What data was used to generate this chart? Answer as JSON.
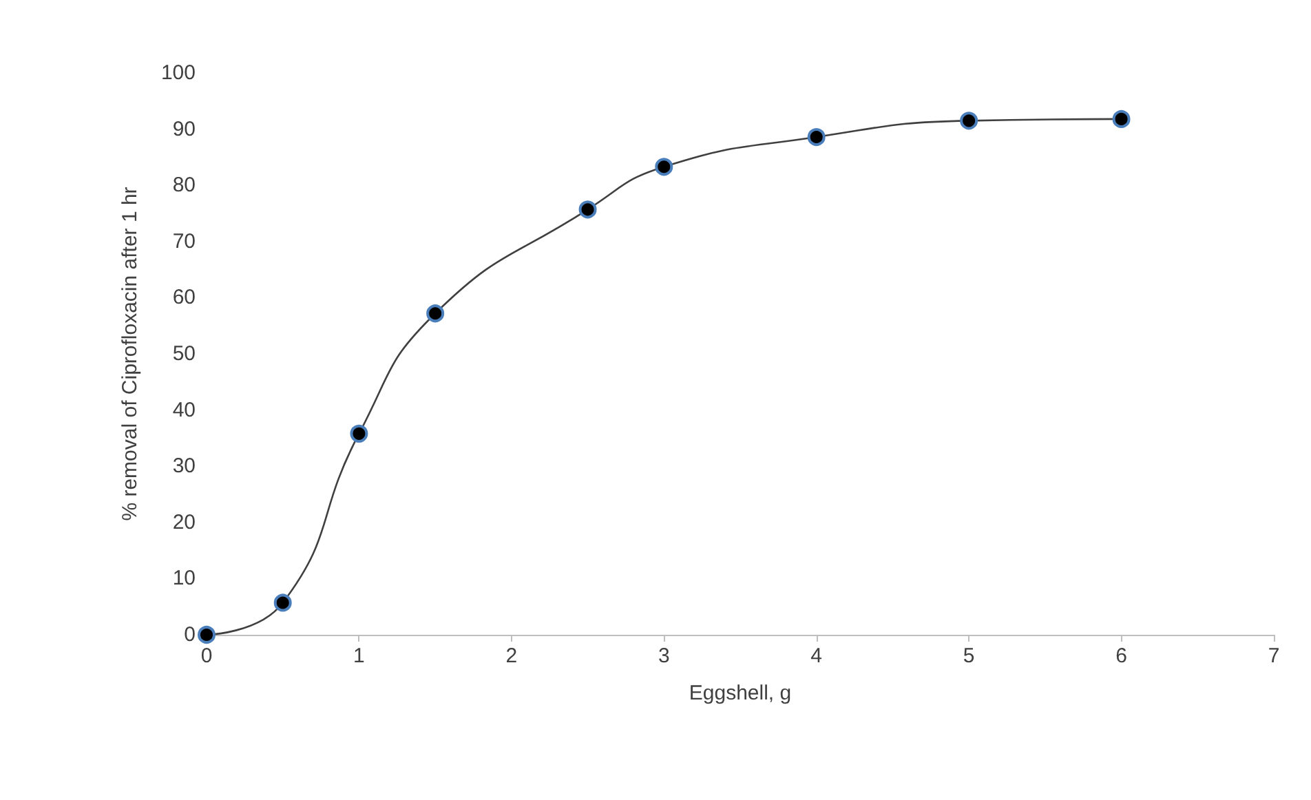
{
  "chart_data": {
    "type": "line",
    "xlabel": "Eggshell, g",
    "ylabel": "% removal of Ciprofloxacin after 1 hr",
    "x": [
      0,
      0.5,
      1,
      1.5,
      2.5,
      3,
      4,
      5,
      6
    ],
    "series": [
      {
        "color": "#000000",
        "values": [
          0,
          5.7,
          35.8,
          57.2,
          75.7,
          83.3,
          88.6,
          91.5,
          91.8
        ]
      }
    ],
    "xlim": [
      0,
      7
    ],
    "xticks": [
      0,
      1,
      2,
      3,
      4,
      5,
      6,
      7
    ],
    "ylim": [
      0,
      100
    ],
    "yticks": [
      0,
      10,
      20,
      30,
      40,
      50,
      60,
      70,
      80,
      90,
      100
    ],
    "grid": false,
    "marker": "circle",
    "line_style": "solid"
  }
}
